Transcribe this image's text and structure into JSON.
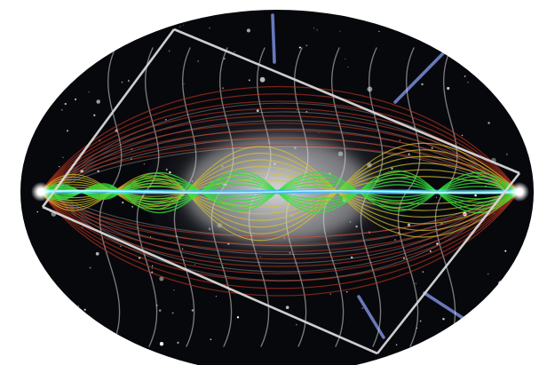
{
  "image": {
    "subject": "lensed-light-paths-over-galaxy-in-elliptical-sky-map",
    "colors": {
      "background": "#ffffff",
      "sky": "#07080c",
      "galaxy_core": "#d8d8dc",
      "central_band": "#33d0ff",
      "green_paths": "#34e03a",
      "yellow_paths": "#d8c42a",
      "red_paths": "#b8321e",
      "white_paths": "#d9d9d9",
      "point_sources": "#ffffff"
    }
  }
}
